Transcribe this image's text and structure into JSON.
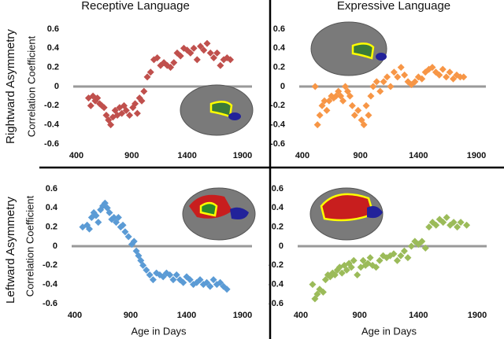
{
  "column_titles": [
    "Receptive Language",
    "Expressive Language"
  ],
  "row_labels": [
    "Rightward Asymmetry",
    "Leftward Asymmetry"
  ],
  "chart_data": [
    {
      "type": "scatter",
      "ylabel": "Correlation Coefficient",
      "color": "#c0504d",
      "xlim": [
        400,
        1900
      ],
      "xticks": [
        400,
        900,
        1400,
        1900
      ],
      "ylim": [
        -0.6,
        0.6
      ],
      "yticks": [
        -0.6,
        -0.4,
        -0.2,
        0,
        0.2,
        0.4,
        0.6
      ],
      "x": [
        510,
        530,
        550,
        570,
        590,
        610,
        630,
        650,
        670,
        690,
        710,
        730,
        750,
        770,
        790,
        810,
        830,
        850,
        880,
        910,
        930,
        950,
        970,
        990,
        1010,
        1040,
        1070,
        1100,
        1130,
        1160,
        1190,
        1220,
        1250,
        1280,
        1310,
        1340,
        1370,
        1400,
        1430,
        1460,
        1490,
        1520,
        1550,
        1580,
        1610,
        1640,
        1670,
        1700,
        1730,
        1760,
        1790
      ],
      "y": [
        -0.12,
        -0.2,
        -0.1,
        -0.15,
        -0.12,
        -0.18,
        -0.2,
        -0.22,
        -0.3,
        -0.35,
        -0.4,
        -0.32,
        -0.25,
        -0.3,
        -0.22,
        -0.28,
        -0.2,
        -0.25,
        -0.3,
        -0.22,
        -0.18,
        -0.28,
        -0.12,
        -0.15,
        -0.05,
        0.1,
        0.15,
        0.28,
        0.3,
        0.22,
        0.25,
        0.22,
        0.2,
        0.25,
        0.35,
        0.32,
        0.4,
        0.38,
        0.35,
        0.4,
        0.28,
        0.42,
        0.38,
        0.45,
        0.35,
        0.3,
        0.35,
        0.22,
        0.28,
        0.3,
        0.28
      ]
    },
    {
      "type": "scatter",
      "color": "#f79646",
      "xlim": [
        400,
        1900
      ],
      "xticks": [
        400,
        900,
        1400,
        1900
      ],
      "ylim": [
        -0.6,
        0.6
      ],
      "yticks": [
        -0.6,
        -0.4,
        -0.2,
        0,
        0.2,
        0.4,
        0.6
      ],
      "x": [
        510,
        530,
        550,
        570,
        590,
        610,
        630,
        650,
        670,
        690,
        710,
        730,
        750,
        770,
        790,
        810,
        830,
        850,
        880,
        910,
        930,
        950,
        970,
        990,
        1010,
        1040,
        1070,
        1100,
        1130,
        1160,
        1190,
        1220,
        1250,
        1280,
        1310,
        1340,
        1370,
        1400,
        1430,
        1460,
        1490,
        1520,
        1550,
        1580,
        1610,
        1640,
        1670,
        1700,
        1730,
        1760,
        1790
      ],
      "y": [
        0.0,
        -0.4,
        -0.3,
        -0.2,
        -0.15,
        -0.25,
        -0.15,
        -0.1,
        -0.12,
        -0.1,
        -0.05,
        -0.1,
        -0.15,
        0.0,
        -0.05,
        -0.1,
        -0.2,
        -0.3,
        -0.25,
        -0.35,
        -0.4,
        -0.2,
        -0.3,
        -0.1,
        0.0,
        0.05,
        -0.05,
        0.05,
        0.1,
        0.0,
        0.15,
        0.1,
        0.2,
        0.12,
        0.05,
        0.02,
        0.05,
        0.1,
        0.08,
        0.15,
        0.18,
        0.2,
        0.15,
        0.12,
        0.18,
        0.1,
        0.15,
        0.08,
        0.12,
        0.1,
        0.1
      ]
    },
    {
      "type": "scatter",
      "ylabel": "Correlation Coefficient",
      "xlabel": "Age in Days",
      "color": "#5b9bd5",
      "xlim": [
        400,
        1900
      ],
      "xticks": [
        400,
        900,
        1400,
        1900
      ],
      "ylim": [
        -0.6,
        0.6
      ],
      "yticks": [
        -0.6,
        -0.4,
        -0.2,
        0,
        0.2,
        0.4,
        0.6
      ],
      "x": [
        470,
        510,
        530,
        550,
        570,
        590,
        610,
        630,
        650,
        670,
        690,
        710,
        730,
        750,
        770,
        790,
        810,
        830,
        850,
        880,
        910,
        930,
        950,
        970,
        990,
        1010,
        1040,
        1070,
        1100,
        1130,
        1160,
        1190,
        1220,
        1250,
        1280,
        1310,
        1340,
        1370,
        1400,
        1430,
        1460,
        1490,
        1520,
        1550,
        1580,
        1610,
        1640,
        1670,
        1700,
        1730,
        1760
      ],
      "y": [
        0.2,
        0.22,
        0.18,
        0.3,
        0.35,
        0.32,
        0.25,
        0.38,
        0.42,
        0.45,
        0.4,
        0.35,
        0.28,
        0.3,
        0.25,
        0.3,
        0.2,
        0.22,
        0.15,
        0.1,
        0.02,
        0.05,
        -0.05,
        -0.1,
        -0.15,
        -0.2,
        -0.25,
        -0.3,
        -0.35,
        -0.28,
        -0.3,
        -0.32,
        -0.28,
        -0.3,
        -0.35,
        -0.3,
        -0.35,
        -0.38,
        -0.32,
        -0.35,
        -0.4,
        -0.38,
        -0.35,
        -0.4,
        -0.38,
        -0.42,
        -0.35,
        -0.4,
        -0.38,
        -0.42,
        -0.45
      ]
    },
    {
      "type": "scatter",
      "xlabel": "Age in Days",
      "color": "#9bbb59",
      "xlim": [
        400,
        1900
      ],
      "xticks": [
        400,
        900,
        1400,
        1900
      ],
      "ylim": [
        -0.6,
        0.6
      ],
      "yticks": [
        -0.6,
        -0.4,
        -0.2,
        0,
        0.2,
        0.4,
        0.6
      ],
      "x": [
        500,
        520,
        540,
        560,
        590,
        610,
        630,
        650,
        670,
        690,
        710,
        730,
        750,
        770,
        790,
        810,
        830,
        850,
        880,
        910,
        930,
        950,
        970,
        990,
        1010,
        1040,
        1070,
        1100,
        1130,
        1160,
        1190,
        1220,
        1250,
        1280,
        1310,
        1340,
        1370,
        1400,
        1430,
        1460,
        1490,
        1520,
        1550,
        1580,
        1610,
        1640,
        1670,
        1700,
        1730,
        1760,
        1810
      ],
      "y": [
        -0.4,
        -0.55,
        -0.5,
        -0.45,
        -0.48,
        -0.35,
        -0.3,
        -0.32,
        -0.28,
        -0.3,
        -0.25,
        -0.22,
        -0.28,
        -0.2,
        -0.25,
        -0.18,
        -0.22,
        -0.15,
        -0.3,
        -0.22,
        -0.15,
        -0.2,
        -0.18,
        -0.12,
        -0.2,
        -0.22,
        -0.15,
        -0.1,
        -0.12,
        -0.1,
        -0.08,
        -0.15,
        -0.1,
        -0.05,
        -0.12,
        0.0,
        0.05,
        0.02,
        0.05,
        -0.02,
        0.2,
        0.25,
        0.22,
        0.28,
        0.25,
        0.3,
        0.22,
        0.25,
        0.2,
        0.25,
        0.22
      ]
    }
  ]
}
